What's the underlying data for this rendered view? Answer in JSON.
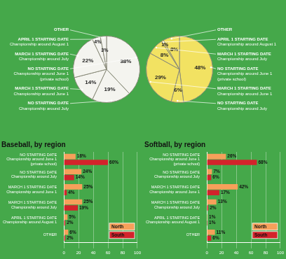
{
  "chart_data": [
    {
      "type": "pie",
      "categories": [
        [
          "NO STARTING DATE",
          "Championship around June 1",
          "(private school)"
        ],
        [
          "NO STARTING DATE",
          "Championship around July"
        ],
        [
          "MARCH 1 STARTING DATE",
          "Championship around June 1"
        ],
        [
          "MARCH 1 STARTING DATE",
          "Championship around July"
        ],
        [
          "APRIL 1 STARTING DATE",
          "Championship around August 1"
        ],
        [
          "OTHER"
        ]
      ],
      "values": [
        38,
        19,
        14,
        22,
        4,
        3
      ],
      "value_labels": [
        "38%",
        "19%",
        "14%",
        "22%",
        "4%",
        "3%"
      ],
      "data_labels": true,
      "color": "#f4f4ef"
    },
    {
      "type": "pie",
      "categories": [
        [
          "NO STARTING DATE",
          "Championship around June 1",
          "(private school)"
        ],
        [
          "NO STARTING DATE",
          "Championship around July"
        ],
        [
          "MARCH 1 STARTING DATE",
          "Championship around June 1"
        ],
        [
          "MARCH 1 STARTING DATE",
          "Championship around July"
        ],
        [
          "APRIL 1 STARTING DATE",
          "Championship around August 1"
        ],
        [
          "OTHER"
        ]
      ],
      "values": [
        48,
        6,
        29,
        8,
        1,
        8
      ],
      "value_labels": [
        "48%",
        "6%",
        "29%",
        "8%",
        "1%",
        "8%"
      ],
      "data_labels": true,
      "color": "#f2e262"
    },
    {
      "type": "bar",
      "title": "Baseball, by region",
      "orientation": "horizontal",
      "categories": [
        [
          "NO STARTING DATE",
          "Championship around June 1",
          "(private school)"
        ],
        [
          "NO STARTING DATE",
          "Championship around July"
        ],
        [
          "MARCH 1 STARTING DATE",
          "Championship around June 1"
        ],
        [
          "MARCH 1 STARTING DATE",
          "Championship around July"
        ],
        [
          "APRIL 1 STARTING DATE",
          "Championship around August 1"
        ],
        [
          "OTHER"
        ]
      ],
      "series": [
        {
          "name": "North",
          "color": "#f6a05a",
          "values": [
            16,
            24,
            25,
            25,
            5,
            6
          ],
          "value_labels": [
            "16%",
            "24%",
            "25%",
            "25%",
            "5%",
            "6%"
          ]
        },
        {
          "name": "South",
          "color": "#d3232b",
          "values": [
            60,
            14,
            4,
            19,
            2,
            2
          ],
          "value_labels": [
            "60%",
            "14%",
            "4%",
            "19%",
            "2%",
            "2%"
          ]
        }
      ],
      "xlim": [
        0,
        100
      ],
      "xticks": [
        0,
        20,
        40,
        60,
        80,
        100
      ],
      "grid": true,
      "legend": "lower right",
      "data_labels": true
    },
    {
      "type": "bar",
      "title": "Softball, by region",
      "orientation": "horizontal",
      "categories": [
        [
          "NO STARTING DATE",
          "Championship around June 1",
          "(private school)"
        ],
        [
          "NO STARTING DATE",
          "Championship around July"
        ],
        [
          "MARCH 1 STARTING DATE",
          "Championship around June 1"
        ],
        [
          "MARCH 1 STARTING DATE",
          "Championship around July"
        ],
        [
          "APRIL 1 STARTING DATE",
          "Championship around August 1"
        ],
        [
          "OTHER"
        ]
      ],
      "series": [
        {
          "name": "North",
          "color": "#f6a05a",
          "values": [
            26,
            7,
            42,
            13,
            1,
            11
          ],
          "value_labels": [
            "26%",
            "7%",
            "42%",
            "13%",
            "1%",
            "11%"
          ]
        },
        {
          "name": "South",
          "color": "#d3232b",
          "values": [
            68,
            6,
            17,
            2,
            1,
            6
          ],
          "value_labels": [
            "68%",
            "6%",
            "17%",
            "2%",
            "1%",
            "6%"
          ]
        }
      ],
      "xlim": [
        0,
        100
      ],
      "xticks": [
        0,
        20,
        40,
        60,
        80,
        100
      ],
      "grid": true,
      "legend": "lower right",
      "data_labels": true
    }
  ]
}
